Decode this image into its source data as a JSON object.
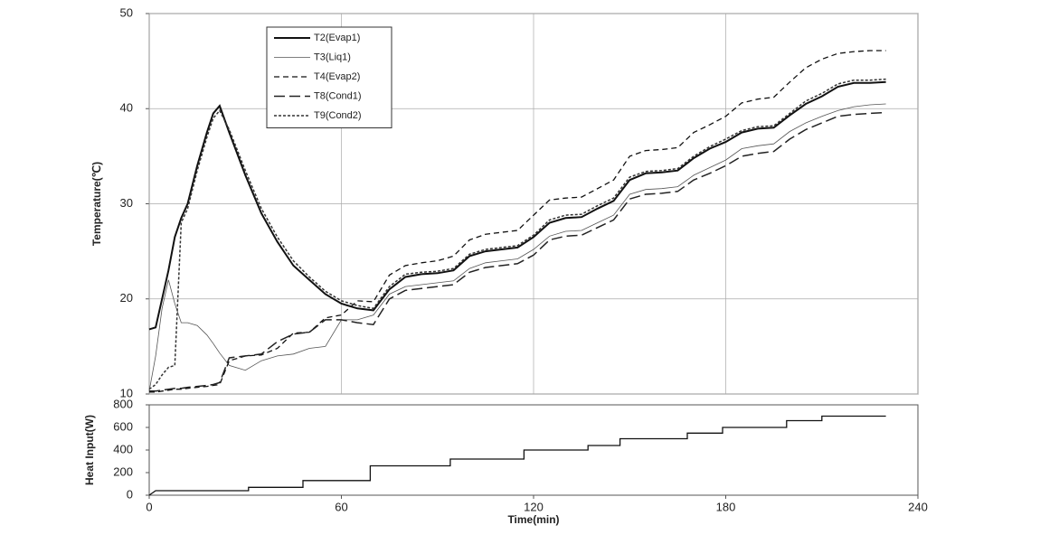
{
  "chart_data": [
    {
      "type": "line",
      "ylabel": "Temperature(℃)",
      "xlim": [
        0,
        240
      ],
      "xticks": [
        0,
        60,
        120,
        180,
        240
      ],
      "ylim": [
        10,
        50
      ],
      "yticks": [
        10,
        20,
        30,
        40,
        50
      ],
      "grid": true,
      "legend": "upper left",
      "x": [
        0,
        2,
        4,
        6,
        8,
        10,
        12,
        15,
        18,
        20,
        22,
        25,
        30,
        35,
        40,
        45,
        50,
        55,
        60,
        65,
        70,
        75,
        80,
        85,
        90,
        95,
        100,
        105,
        110,
        115,
        120,
        125,
        130,
        135,
        140,
        145,
        150,
        155,
        160,
        165,
        170,
        175,
        180,
        185,
        190,
        195,
        200,
        205,
        210,
        215,
        220,
        225,
        230
      ],
      "series": [
        {
          "name": "T2(Evap1)",
          "color": "#111111",
          "linestyle": "solid",
          "linewidth": 2,
          "values": [
            16.8,
            17,
            20,
            23,
            26.5,
            28.5,
            30,
            34,
            37.5,
            39.5,
            40.3,
            37.5,
            33,
            29,
            26,
            23.5,
            22,
            20.5,
            19.5,
            19,
            18.8,
            21,
            22.3,
            22.6,
            22.7,
            23,
            24.5,
            25,
            25.2,
            25.4,
            26.5,
            28,
            28.5,
            28.6,
            29.5,
            30.3,
            32.5,
            33.2,
            33.3,
            33.5,
            34.8,
            35.8,
            36.5,
            37.5,
            37.9,
            38,
            39.3,
            40.5,
            41.3,
            42.3,
            42.7,
            42.7,
            42.8
          ]
        },
        {
          "name": "T3(Liq1)",
          "color": "#555555",
          "linestyle": "solid",
          "linewidth": 0.8,
          "values": [
            10.3,
            14,
            19,
            22,
            19.5,
            17.5,
            17.5,
            17.2,
            16.2,
            15.3,
            14.3,
            13,
            12.5,
            13.5,
            14,
            14.2,
            14.8,
            15,
            17.8,
            17.8,
            18.3,
            20.5,
            21.3,
            21.5,
            21.7,
            21.9,
            23.2,
            23.8,
            24,
            24.2,
            25.2,
            26.6,
            27.1,
            27.2,
            28,
            28.8,
            31,
            31.5,
            31.6,
            31.8,
            33,
            33.8,
            34.6,
            35.8,
            36.1,
            36.3,
            37.6,
            38.5,
            39.2,
            39.8,
            40.2,
            40.4,
            40.5
          ]
        },
        {
          "name": "T4(Evap2)",
          "color": "#111111",
          "linestyle": "dashed",
          "linewidth": 1.3,
          "values": [
            10.2,
            10.2,
            10.3,
            10.4,
            10.5,
            10.5,
            10.6,
            10.7,
            10.8,
            10.9,
            11,
            13.5,
            14,
            14.1,
            14.8,
            16.4,
            16.5,
            18,
            18.3,
            19.8,
            19.7,
            22.5,
            23.5,
            23.8,
            24,
            24.5,
            26.2,
            26.8,
            27,
            27.2,
            28.8,
            30.4,
            30.6,
            30.7,
            31.6,
            32.5,
            35,
            35.6,
            35.7,
            35.9,
            37.5,
            38.3,
            39.2,
            40.6,
            41,
            41.2,
            42.8,
            44.3,
            45.2,
            45.8,
            46,
            46.1,
            46.1
          ]
        },
        {
          "name": "T8(Cond1)",
          "color": "#222222",
          "linestyle": "longdash",
          "linewidth": 1.5,
          "values": [
            10.3,
            10.3,
            10.4,
            10.5,
            10.6,
            10.6,
            10.7,
            10.8,
            10.9,
            11,
            11.2,
            13.8,
            14,
            14.2,
            15.5,
            16.3,
            16.5,
            17.8,
            17.8,
            17.5,
            17.3,
            20,
            20.9,
            21.1,
            21.3,
            21.5,
            22.8,
            23.3,
            23.5,
            23.7,
            24.6,
            26.2,
            26.6,
            26.7,
            27.5,
            28.3,
            30.5,
            31,
            31.1,
            31.3,
            32.5,
            33.2,
            34,
            35,
            35.3,
            35.5,
            36.8,
            37.8,
            38.5,
            39.2,
            39.4,
            39.5,
            39.6
          ]
        },
        {
          "name": "T9(Cond2)",
          "color": "#333333",
          "linestyle": "dotted",
          "linewidth": 1.5,
          "values": [
            10.5,
            11,
            12,
            12.8,
            13,
            28,
            29.5,
            33.5,
            37,
            39,
            39.8,
            37.8,
            33.5,
            29.5,
            26.5,
            24,
            22.3,
            20.8,
            19.8,
            19.3,
            19,
            21.3,
            22.6,
            22.8,
            22.9,
            23.2,
            24.7,
            25.2,
            25.4,
            25.6,
            26.7,
            28.3,
            28.8,
            28.9,
            29.8,
            30.6,
            32.8,
            33.4,
            33.5,
            33.7,
            35,
            36,
            36.8,
            37.7,
            38.1,
            38.2,
            39.5,
            40.8,
            41.6,
            42.6,
            43,
            43,
            43.1
          ]
        }
      ]
    },
    {
      "type": "line",
      "xlabel": "Time(min)",
      "ylabel": "Heat Input(W)",
      "xlim": [
        0,
        240
      ],
      "xticks": [
        0,
        60,
        120,
        180,
        240
      ],
      "ylim": [
        0,
        800
      ],
      "yticks": [
        0,
        200,
        400,
        600,
        800
      ],
      "grid": false,
      "color": "#111111",
      "x": [
        0,
        2,
        31,
        31,
        48,
        48,
        69,
        69,
        94,
        94,
        117,
        117,
        137,
        137,
        147,
        147,
        168,
        168,
        179,
        179,
        199,
        199,
        210,
        210,
        230
      ],
      "values": [
        0,
        40,
        40,
        70,
        70,
        130,
        130,
        260,
        260,
        320,
        320,
        400,
        400,
        440,
        440,
        500,
        500,
        550,
        550,
        600,
        600,
        660,
        660,
        700,
        700
      ]
    }
  ]
}
